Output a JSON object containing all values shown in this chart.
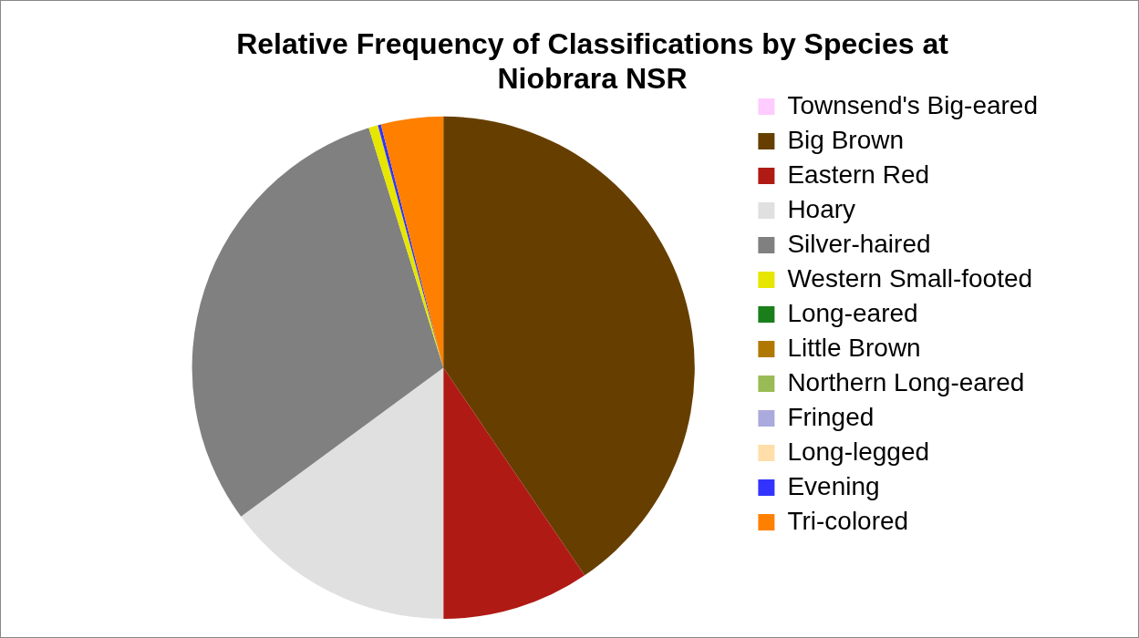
{
  "chart_data": {
    "type": "pie",
    "title": "Relative Frequency of Classifications by Species at Niobrara NSR",
    "categories": [
      "Townsend's Big-eared",
      "Big Brown",
      "Eastern Red",
      "Hoary",
      "Silver-haired",
      "Western Small-footed",
      "Long-eared",
      "Little Brown",
      "Northern Long-eared",
      "Fringed",
      "Long-legged",
      "Evening",
      "Tri-colored"
    ],
    "values": [
      0,
      40.5,
      9.5,
      14.9,
      30.3,
      0.6,
      0,
      0,
      0,
      0,
      0,
      0.2,
      4.0
    ],
    "colors": [
      "#ffccff",
      "#663f00",
      "#b01a14",
      "#e0e0e0",
      "#808080",
      "#e6e600",
      "#1a7f1a",
      "#b07800",
      "#99bb55",
      "#aaaadd",
      "#ffdeaa",
      "#3333ff",
      "#ff8000"
    ],
    "legend": "right"
  }
}
